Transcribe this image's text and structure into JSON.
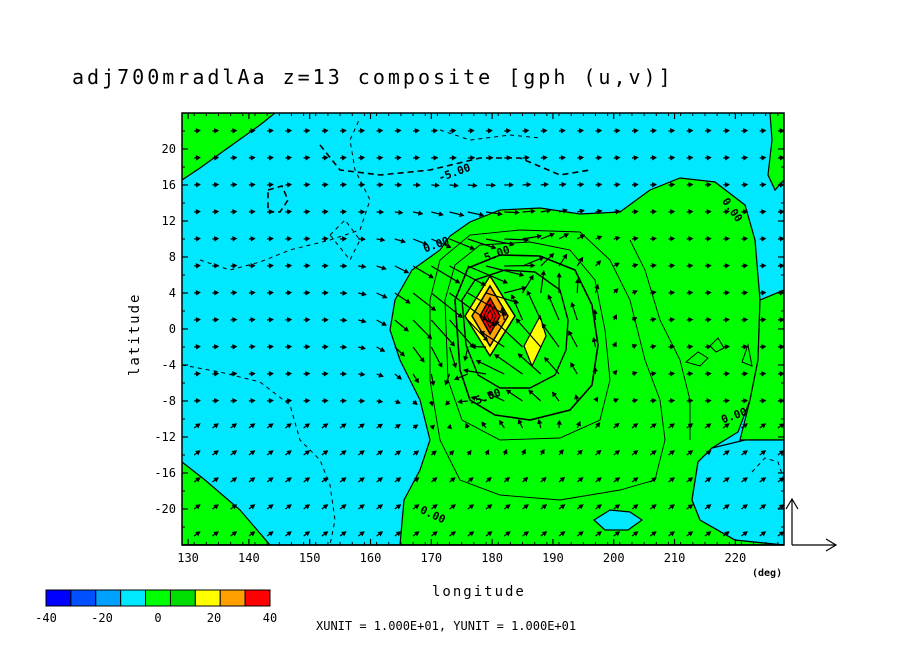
{
  "chart_data": {
    "type": "contour",
    "title": "adj700mradlAa z=13 composite [gph (u,v)]",
    "xlabel": "longitude",
    "ylabel": "latitude",
    "x_unit_label": "(deg)",
    "xlim": [
      129,
      228
    ],
    "ylim": [
      -24,
      24
    ],
    "x_ticks": [
      130,
      140,
      150,
      160,
      170,
      180,
      190,
      200,
      210,
      220
    ],
    "x_tick_labels": [
      "130",
      "140",
      "150",
      "160",
      "170",
      "180",
      "190",
      "200",
      "210",
      "220"
    ],
    "y_ticks": [
      20,
      16,
      12,
      8,
      4,
      0,
      -4,
      -8,
      -12,
      -16,
      -20
    ],
    "y_tick_labels": [
      "20",
      "16",
      "12",
      "8",
      "4",
      "0",
      "-4",
      "-8",
      "-12",
      "-16",
      "-20"
    ],
    "contour_labels": [
      {
        "text": "-5.00",
        "x": 174,
        "y": 17
      },
      {
        "text": "0.00",
        "x": 171,
        "y": 9
      },
      {
        "text": "5.00",
        "x": 181,
        "y": 8
      },
      {
        "text": "0.00",
        "x": 219,
        "y": 13
      },
      {
        "text": "-5.00",
        "x": 179,
        "y": -8
      },
      {
        "text": "0.00",
        "x": 220,
        "y": -10
      },
      {
        "text": "0.00",
        "x": 170,
        "y": -21
      }
    ],
    "colorbar": {
      "ticks": [
        "-40",
        "-20",
        "0",
        "20",
        "40"
      ],
      "colors": [
        "#0000ff",
        "#0050ff",
        "#00a0ff",
        "#00e8ff",
        "#00ff00",
        "#00dd00",
        "#ffff00",
        "#ffa000",
        "#ff0000"
      ],
      "bounds": [
        -40,
        -30,
        -20,
        -10,
        0,
        10,
        20,
        30,
        40
      ]
    },
    "unit_text": "XUNIT = 1.000E+01, YUNIT = 1.000E+01",
    "vector_field": {
      "type": "quiver",
      "x_step_deg": 3,
      "y_step_deg": 3
    }
  }
}
